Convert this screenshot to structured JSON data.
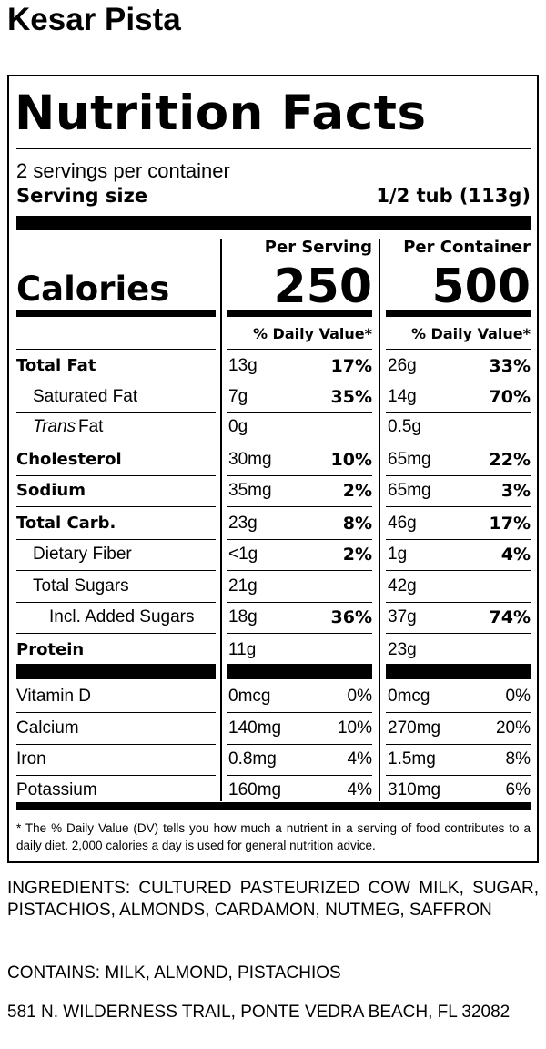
{
  "product_name": "Kesar Pista",
  "label": {
    "title": "Nutrition Facts",
    "servings": "2 servings per container",
    "serving_size_label": "Serving size",
    "serving_size": "1/2 tub (113g)",
    "columns": [
      "Per Serving",
      "Per Container"
    ],
    "calories_label": "Calories",
    "calories": [
      250,
      500
    ],
    "dv_header": "% Daily Value*",
    "nutrients": [
      {
        "name": "Total Fat",
        "serving": [
          "13g",
          "17%"
        ],
        "container": [
          "26g",
          "33%"
        ]
      },
      {
        "name": "Saturated Fat",
        "serving": [
          "7g",
          "35%"
        ],
        "container": [
          "14g",
          "70%"
        ]
      },
      {
        "name": [
          "Trans",
          "Fat"
        ],
        "serving": [
          "0g"
        ],
        "container": [
          "0.5g"
        ]
      },
      {
        "name": "Cholesterol",
        "serving": [
          "30mg",
          "10%"
        ],
        "container": [
          "65mg",
          "22%"
        ]
      },
      {
        "name": "Sodium",
        "serving": [
          "35mg",
          "2%"
        ],
        "container": [
          "65mg",
          "3%"
        ]
      },
      {
        "name": "Total Carb.",
        "serving": [
          "23g",
          "8%"
        ],
        "container": [
          "46g",
          "17%"
        ]
      },
      {
        "name": "Dietary Fiber",
        "serving": [
          "<1g",
          "2%"
        ],
        "container": [
          "1g",
          "4%"
        ]
      },
      {
        "name": "Total Sugars",
        "serving": [
          "21g"
        ],
        "container": [
          "42g"
        ]
      },
      {
        "name": "Incl. Added Sugars",
        "serving": [
          "18g",
          "36%"
        ],
        "container": [
          "37g",
          "74%"
        ]
      },
      {
        "name": "Protein",
        "serving": [
          "11g"
        ],
        "container": [
          "23g"
        ]
      }
    ],
    "vitamins": [
      {
        "name": "Vitamin D",
        "serving": [
          "0mcg",
          "0%"
        ],
        "container": [
          "0mcg",
          "0%"
        ]
      },
      {
        "name": "Calcium",
        "serving": [
          "140mg",
          "10%"
        ],
        "container": [
          "270mg",
          "20%"
        ]
      },
      {
        "name": "Iron",
        "serving": [
          "0.8mg",
          "4%"
        ],
        "container": [
          "1.5mg",
          "8%"
        ]
      },
      {
        "name": "Potassium",
        "serving": [
          "160mg",
          "4%"
        ],
        "container": [
          "310mg",
          "6%"
        ]
      }
    ],
    "footnote": "* The % Daily Value (DV) tells you how much a nutrient in a serving of food contributes to a daily diet. 2,000 calories a day is used for general nutrition advice."
  },
  "ingredients": "INGREDIENTS: CULTURED PASTEURIZED COW MILK, SUGAR, PISTACHIOS, ALMONDS, CARDAMON, NUTMEG, SAFFRON",
  "contains": "CONTAINS: MILK, ALMOND, PISTACHIOS",
  "address": "581 N. WILDERNESS TRAIL, PONTE VEDRA BEACH, FL 32082"
}
